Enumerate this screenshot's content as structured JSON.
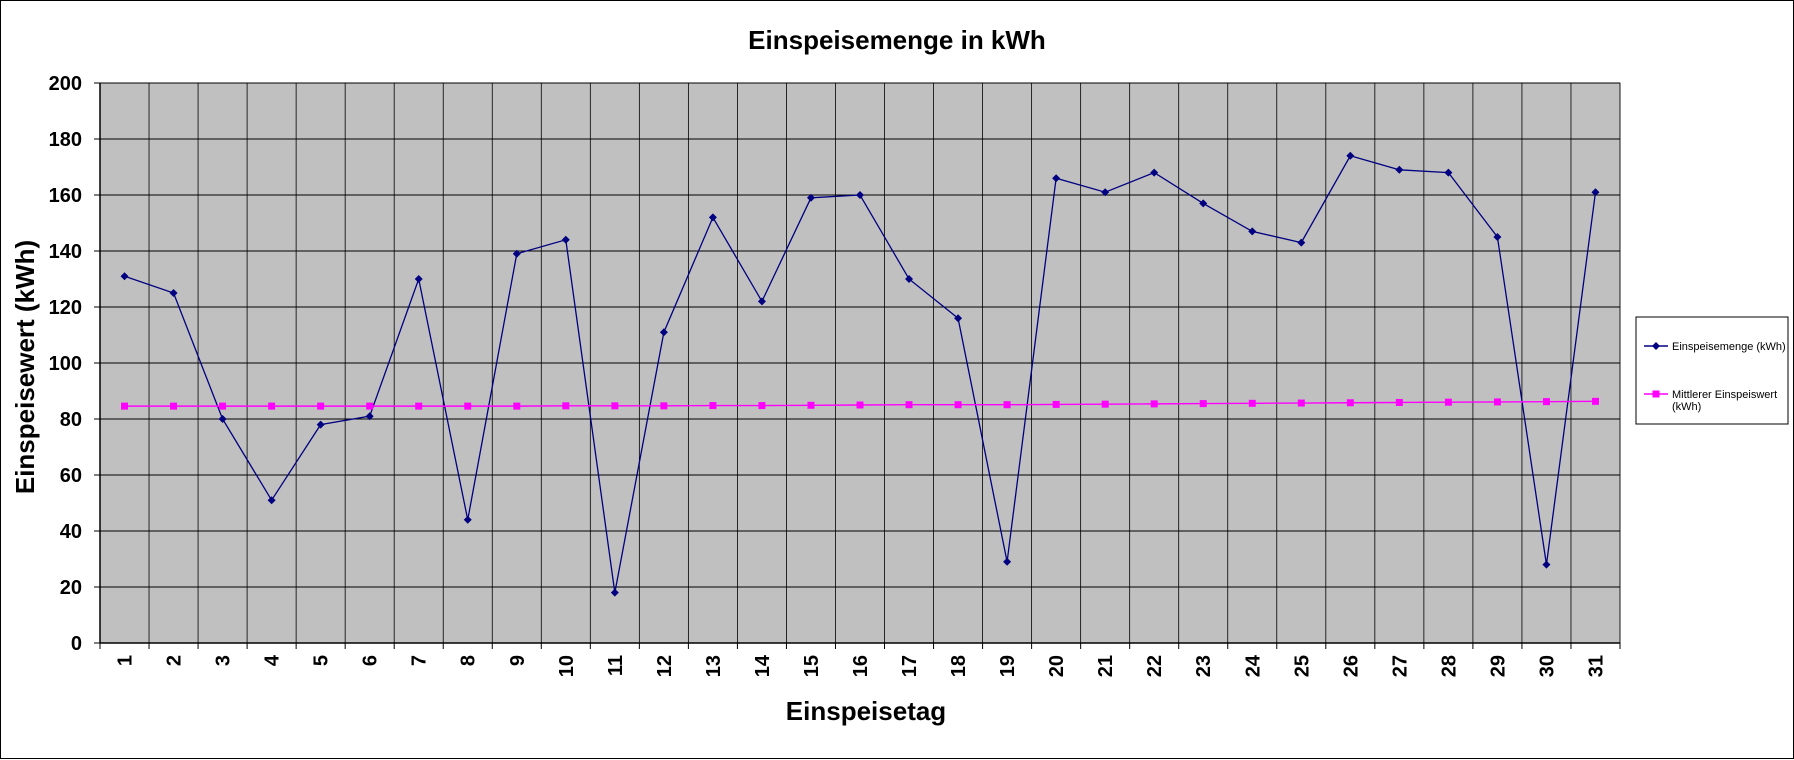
{
  "chart_data": {
    "type": "line",
    "title": "Einspeisemenge in kWh",
    "xlabel": "Einspeisetag",
    "ylabel": "Einspeisewert  (kWh)",
    "ylim": [
      0,
      200
    ],
    "ytick_step": 20,
    "grid": true,
    "legend_position": "right",
    "plot_background": "#c0c0c0",
    "categories": [
      "1",
      "2",
      "3",
      "4",
      "5",
      "6",
      "7",
      "8",
      "9",
      "10",
      "11",
      "12",
      "13",
      "14",
      "15",
      "16",
      "17",
      "18",
      "19",
      "20",
      "21",
      "22",
      "23",
      "24",
      "25",
      "26",
      "27",
      "28",
      "29",
      "30",
      "31"
    ],
    "series": [
      {
        "name": "Einspeisemenge (kWh)",
        "color": "#000080",
        "marker": "diamond",
        "values": [
          131,
          125,
          80,
          51,
          78,
          81,
          130,
          44,
          139,
          144,
          18,
          111,
          152,
          122,
          159,
          160,
          130,
          116,
          29,
          166,
          161,
          168,
          157,
          147,
          143,
          174,
          169,
          168,
          145,
          28,
          161
        ]
      },
      {
        "name": "Mittlerer Einspeiswert (kWh)",
        "color": "#ff00ff",
        "marker": "square",
        "values": [
          84.6,
          84.6,
          84.6,
          84.6,
          84.6,
          84.6,
          84.6,
          84.6,
          84.6,
          84.7,
          84.7,
          84.7,
          84.8,
          84.8,
          84.9,
          85.0,
          85.1,
          85.1,
          85.1,
          85.2,
          85.3,
          85.4,
          85.5,
          85.6,
          85.7,
          85.8,
          85.9,
          86.0,
          86.1,
          86.2,
          86.3
        ]
      }
    ]
  }
}
